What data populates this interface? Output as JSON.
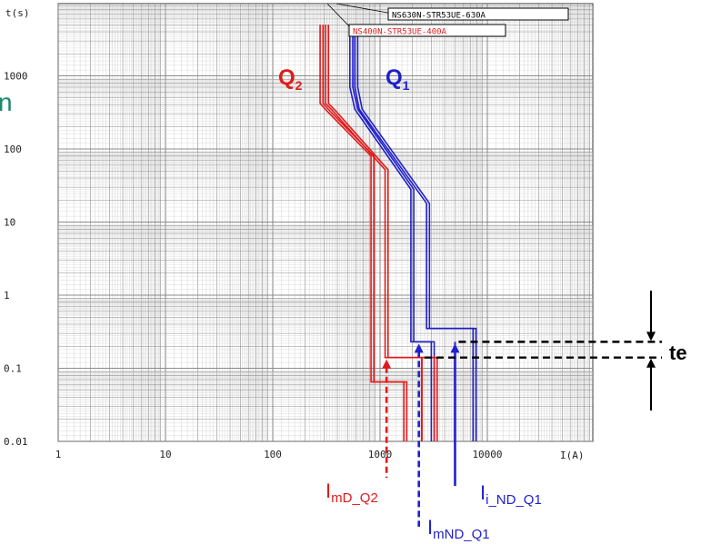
{
  "chart_data": {
    "type": "line",
    "scale": {
      "x": "log",
      "y": "log"
    },
    "xlim": [
      1,
      20000
    ],
    "ylim": [
      0.01,
      5000
    ],
    "grid": true,
    "xlabel": "I(A)",
    "ylabel": "t(s)",
    "x_ticks": [
      {
        "value": 1,
        "label": "1"
      },
      {
        "value": 10,
        "label": "10"
      },
      {
        "value": 100,
        "label": "100"
      },
      {
        "value": 1000,
        "label": "1000"
      },
      {
        "value": 10000,
        "label": "10000"
      }
    ],
    "y_ticks": [
      {
        "value": 1000,
        "label": "1000"
      },
      {
        "value": 100,
        "label": "100"
      },
      {
        "value": 10,
        "label": "10"
      },
      {
        "value": 1,
        "label": "1"
      },
      {
        "value": 0.1,
        "label": "0.1"
      },
      {
        "value": 0.01,
        "label": "0.01"
      }
    ],
    "colors": {
      "q1": "#1f1fcc",
      "q2": "#e01a1a",
      "grid": "#8c8c8c",
      "annotation": "#000000"
    },
    "series": [
      {
        "name": "Q1",
        "device": "NS630N-STR53UE-630A",
        "color": "#1f1fcc",
        "left_boundary": [
          [
            540,
            5000
          ],
          [
            540,
            700
          ],
          [
            600,
            350
          ],
          [
            2000,
            28
          ],
          [
            2000,
            0.23
          ],
          [
            3100,
            0.23
          ],
          [
            3100,
            0.01
          ]
        ],
        "right_boundary": [
          [
            600,
            5000
          ],
          [
            600,
            700
          ],
          [
            660,
            350
          ],
          [
            2800,
            18
          ],
          [
            2800,
            0.35
          ],
          [
            7600,
            0.35
          ],
          [
            7600,
            0.01
          ]
        ],
        "inner_boundary": [
          [
            600,
            0.23
          ],
          [
            600,
            0.23
          ]
        ],
        "instantaneous_inner": [
          [
            5000,
            0.23
          ],
          [
            5000,
            0.01
          ]
        ]
      },
      {
        "name": "Q2",
        "device": "NS400N-STR53UE-400A",
        "color": "#e01a1a",
        "left_boundary": [
          [
            285,
            5000
          ],
          [
            285,
            420
          ],
          [
            330,
            330
          ],
          [
            850,
            80
          ],
          [
            850,
            0.065
          ],
          [
            1720,
            0.065
          ],
          [
            1720,
            0.01
          ]
        ],
        "right_boundary": [
          [
            320,
            5000
          ],
          [
            320,
            420
          ],
          [
            375,
            330
          ],
          [
            1150,
            52
          ],
          [
            1150,
            0.14
          ],
          [
            3300,
            0.14
          ],
          [
            3300,
            0.01
          ]
        ],
        "inner_boundary": [],
        "instantaneous_inner": [
          [
            2450,
            0.14
          ],
          [
            2450,
            0.01
          ]
        ]
      }
    ],
    "callouts": [
      {
        "text": "NS630N-STR53UE-630A",
        "color": "#000000"
      },
      {
        "text": "NS400N-STR53UE-400A",
        "color": "#e01a1a"
      }
    ],
    "series_labels": [
      {
        "main": "Q",
        "sub": "2",
        "color": "#e01a1a"
      },
      {
        "main": "Q",
        "sub": "1",
        "color": "#1f1fcc"
      }
    ],
    "annotations": [
      {
        "main": "I",
        "sub": "mD_Q2",
        "color": "#e01a1a",
        "current": 1150,
        "time": 0.14,
        "style": "dashed"
      },
      {
        "main": "I",
        "sub": "mND_Q1",
        "color": "#1f1fcc",
        "current": 2300,
        "time": 0.23,
        "style": "dashed"
      },
      {
        "main": "I",
        "sub": "i_ND_Q1",
        "color": "#1f1fcc",
        "current": 5000,
        "time": 0.23,
        "style": "solid"
      }
    ],
    "te": {
      "label": "te",
      "t_top": 0.23,
      "t_bottom": 0.14
    }
  },
  "page": {
    "edge_mark": "n"
  }
}
